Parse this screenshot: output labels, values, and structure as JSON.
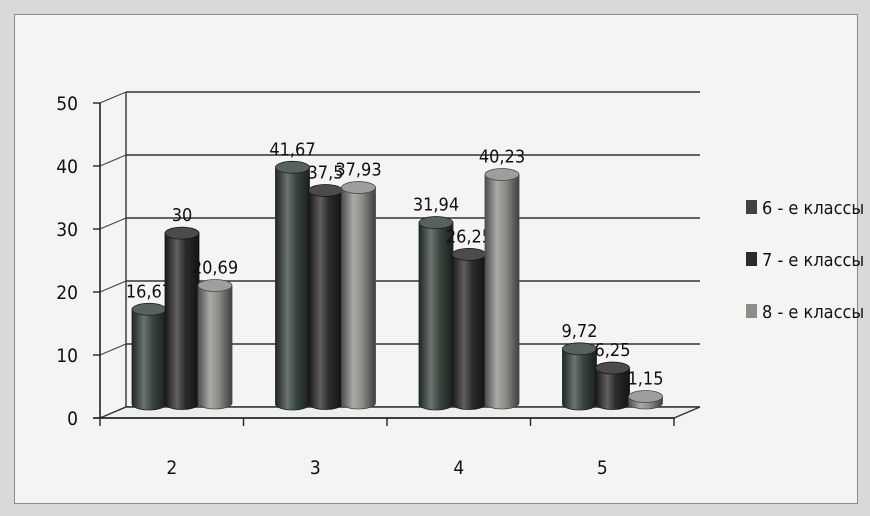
{
  "chart_data": {
    "type": "bar",
    "style": "3d-cylinder",
    "categories": [
      "2",
      "3",
      "4",
      "5"
    ],
    "series": [
      {
        "name": "6 - е классы",
        "values": [
          16.67,
          41.67,
          31.94,
          9.72
        ],
        "labels": [
          "16,67",
          "41,67",
          "31,94",
          "9,72"
        ],
        "color": "#3a463f"
      },
      {
        "name": "7 - е классы",
        "values": [
          30,
          37.5,
          26.25,
          6.25
        ],
        "labels": [
          "30",
          "37,5",
          "26,25",
          "6,25"
        ],
        "color": "#2c2a2b"
      },
      {
        "name": "8 - е классы",
        "values": [
          20.69,
          37.93,
          40.23,
          1.15
        ],
        "labels": [
          "20,69",
          "37,93",
          "40,23",
          "1,15"
        ],
        "color": "#8d8d8a"
      }
    ],
    "yticks": [
      "0",
      "10",
      "20",
      "30",
      "40",
      "50"
    ],
    "ylim": [
      0,
      50
    ],
    "grid": true,
    "legend": "right"
  }
}
